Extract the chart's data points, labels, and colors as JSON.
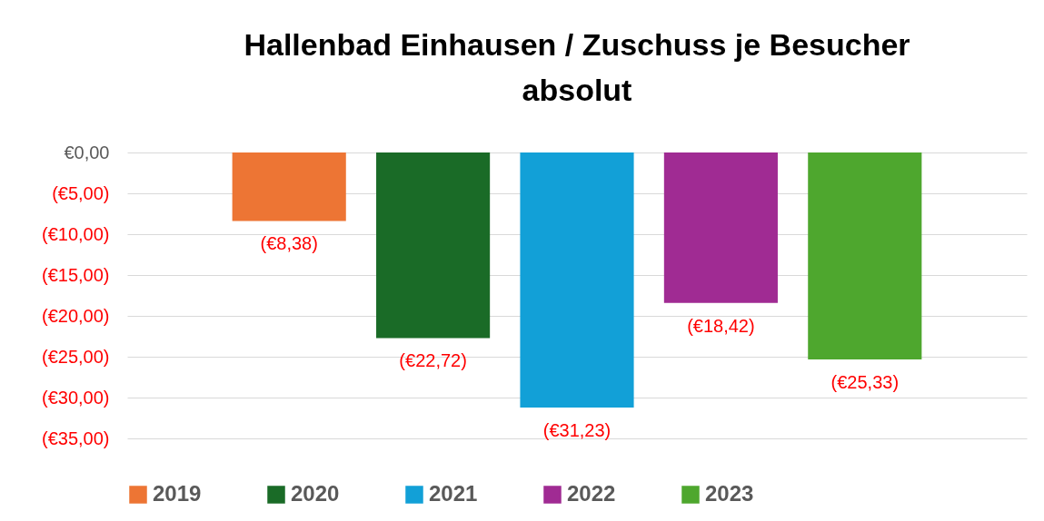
{
  "chart_data": {
    "type": "bar",
    "title": "Hallenbad Einhausen / Zuschuss je Besucher absolut",
    "categories": [
      null
    ],
    "series": [
      {
        "name": "2019",
        "color": "#ed7534",
        "values": [
          -8.38
        ],
        "value_labels": [
          "(€8,38)"
        ]
      },
      {
        "name": "2020",
        "color": "#1a6b27",
        "values": [
          -22.72
        ],
        "value_labels": [
          "(€22,72)"
        ]
      },
      {
        "name": "2021",
        "color": "#12a0d7",
        "values": [
          -31.23
        ],
        "value_labels": [
          "(€31,23)"
        ]
      },
      {
        "name": "2022",
        "color": "#a02b93",
        "values": [
          -18.42
        ],
        "value_labels": [
          "(€18,42)"
        ]
      },
      {
        "name": "2023",
        "color": "#4ea72e",
        "values": [
          -25.33
        ],
        "value_labels": [
          "(€25,33)"
        ]
      }
    ],
    "ylim": [
      -35,
      0
    ],
    "yticks": [
      {
        "value": 0,
        "label": "€0,00"
      },
      {
        "value": -5,
        "label": "(€5,00)"
      },
      {
        "value": -10,
        "label": "(€10,00)"
      },
      {
        "value": -15,
        "label": "(€15,00)"
      },
      {
        "value": -20,
        "label": "(€20,00)"
      },
      {
        "value": -25,
        "label": "(€25,00)"
      },
      {
        "value": -30,
        "label": "(€30,00)"
      },
      {
        "value": -35,
        "label": "(€35,00)"
      }
    ],
    "grid": true,
    "legend": "bottom"
  }
}
